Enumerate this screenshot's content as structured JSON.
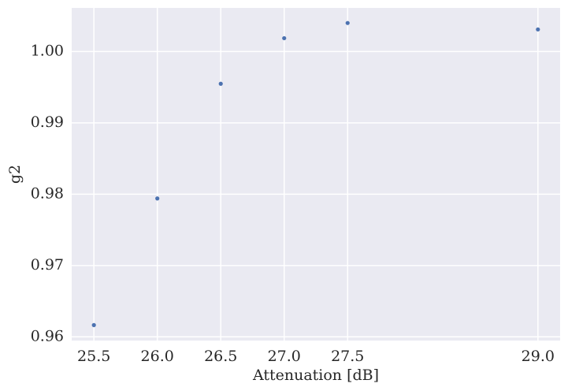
{
  "chart_data": {
    "type": "scatter",
    "xlabel": "Attenuation [dB]",
    "ylabel": "g2",
    "x": [
      25.5,
      26.0,
      26.5,
      27.0,
      27.5,
      29.0
    ],
    "series": [
      {
        "color": "#4c72b0",
        "values": [
          0.96165,
          0.9794,
          0.99548,
          1.00187,
          1.004,
          1.0031
        ]
      }
    ],
    "xlim": [
      25.325,
      29.175
    ],
    "ylim": [
      0.95948,
      1.00612
    ],
    "xticks": [
      25.5,
      {
        "value": 26,
        "label": "26.0"
      },
      26.5,
      {
        "value": 27,
        "label": "27.0"
      },
      27.5,
      {
        "value": 29,
        "label": "29.0"
      }
    ],
    "yticks": [
      0.96,
      0.97,
      0.98,
      0.99,
      {
        "value": 1,
        "label": "1.00"
      }
    ],
    "grid": true
  }
}
